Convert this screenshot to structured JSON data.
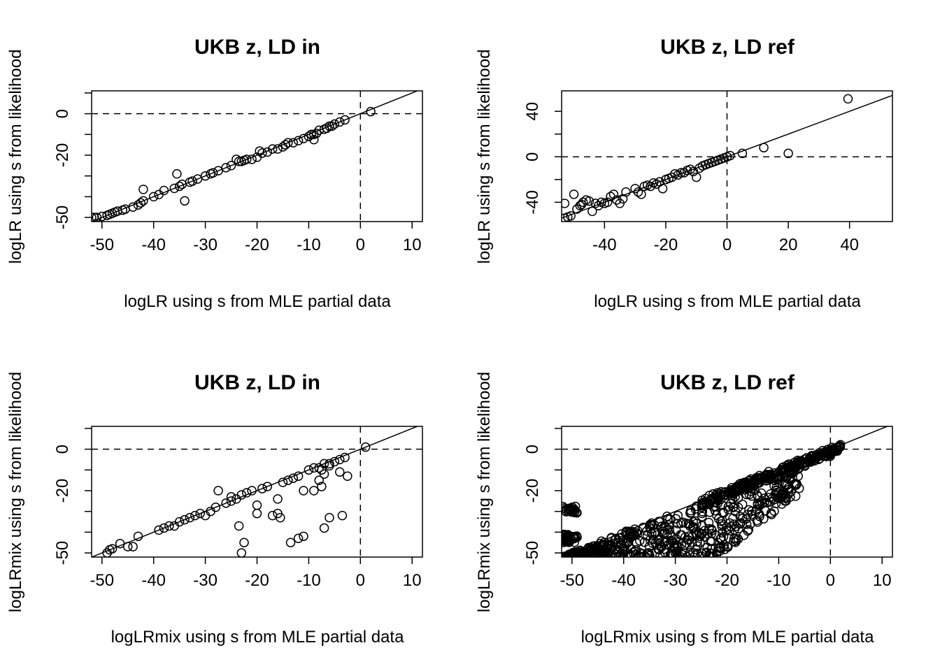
{
  "chart_data": [
    {
      "type": "scatter",
      "title": "UKB z, LD in",
      "xlabel": "logLR using s from MLE partial data",
      "ylabel": "logLR using s from likelihood",
      "xlim": [
        -52,
        12
      ],
      "ylim": [
        -52,
        11
      ],
      "xticks": [
        -50,
        -40,
        -30,
        -20,
        -10,
        0,
        10
      ],
      "yticks": [
        -50,
        -40,
        -30,
        -20,
        -10,
        0,
        10
      ],
      "ytick_labels": [
        "-50",
        "",
        "",
        "-20",
        "",
        "0",
        ""
      ],
      "reference_lines": {
        "diagonal": true,
        "h_dashed": 0,
        "v_dashed": 0
      },
      "points": [
        [
          -52,
          -50
        ],
        [
          -51.5,
          -50
        ],
        [
          -51,
          -50
        ],
        [
          -50,
          -49.5
        ],
        [
          -49,
          -49
        ],
        [
          -48.5,
          -48.5
        ],
        [
          -48,
          -48
        ],
        [
          -47.5,
          -47.5
        ],
        [
          -47,
          -47
        ],
        [
          -46,
          -46.5
        ],
        [
          -45.5,
          -46
        ],
        [
          -44,
          -45
        ],
        [
          -43,
          -44
        ],
        [
          -42.5,
          -43
        ],
        [
          -42,
          -42
        ],
        [
          -42,
          -36.5
        ],
        [
          -40,
          -40
        ],
        [
          -39,
          -39
        ],
        [
          -38,
          -37
        ],
        [
          -36,
          -36
        ],
        [
          -35,
          -35
        ],
        [
          -34.5,
          -34
        ],
        [
          -35.5,
          -29
        ],
        [
          -34,
          -42
        ],
        [
          -33,
          -33
        ],
        [
          -32.5,
          -32.5
        ],
        [
          -31.5,
          -31.5
        ],
        [
          -30,
          -30
        ],
        [
          -29,
          -29
        ],
        [
          -28.5,
          -28.5
        ],
        [
          -27.5,
          -27.5
        ],
        [
          -26,
          -26
        ],
        [
          -25,
          -25
        ],
        [
          -24,
          -22
        ],
        [
          -23.5,
          -23
        ],
        [
          -23,
          -23
        ],
        [
          -22.5,
          -22.5
        ],
        [
          -22,
          -22
        ],
        [
          -21,
          -22
        ],
        [
          -20,
          -21
        ],
        [
          -19.5,
          -18
        ],
        [
          -19,
          -19
        ],
        [
          -18,
          -18.5
        ],
        [
          -17,
          -17
        ],
        [
          -16,
          -17
        ],
        [
          -15,
          -16
        ],
        [
          -14.5,
          -15
        ],
        [
          -14,
          -14
        ],
        [
          -13,
          -14
        ],
        [
          -12,
          -13
        ],
        [
          -11,
          -12
        ],
        [
          -10,
          -11
        ],
        [
          -9.5,
          -10
        ],
        [
          -9,
          -10
        ],
        [
          -8.5,
          -9.5
        ],
        [
          -8,
          -8
        ],
        [
          -7,
          -7.5
        ],
        [
          -6.5,
          -7
        ],
        [
          -6,
          -6
        ],
        [
          -5.5,
          -6
        ],
        [
          -5,
          -5
        ],
        [
          -4,
          -4
        ],
        [
          -3,
          -3
        ],
        [
          2,
          1
        ],
        [
          -9,
          -12.5
        ]
      ]
    },
    {
      "type": "scatter",
      "title": "UKB z, LD ref",
      "xlabel": "logLR using s from MLE partial data",
      "ylabel": "logLR using s from likelihood",
      "xlim": [
        -54,
        54
      ],
      "ylim": [
        -57,
        58
      ],
      "xticks": [
        -40,
        -20,
        0,
        20,
        40
      ],
      "yticks": [
        -40,
        -20,
        0,
        20,
        40
      ],
      "ytick_labels": [
        "-40",
        "",
        "0",
        "",
        "40"
      ],
      "reference_lines": {
        "diagonal": true,
        "h_dashed": 0,
        "v_dashed": 0
      },
      "points": [
        [
          -53,
          -54
        ],
        [
          -52,
          -53
        ],
        [
          -51,
          -52
        ],
        [
          -53,
          -41
        ],
        [
          -50,
          -33
        ],
        [
          -49,
          -46
        ],
        [
          -48,
          -43
        ],
        [
          -47.5,
          -42
        ],
        [
          -47,
          -40
        ],
        [
          -46,
          -38
        ],
        [
          -45,
          -39
        ],
        [
          -44,
          -48
        ],
        [
          -43,
          -41
        ],
        [
          -42,
          -43
        ],
        [
          -41,
          -40
        ],
        [
          -40,
          -41
        ],
        [
          -39,
          -40
        ],
        [
          -38,
          -35
        ],
        [
          -37,
          -33
        ],
        [
          -36,
          -38
        ],
        [
          -35,
          -41
        ],
        [
          -34,
          -37
        ],
        [
          -33,
          -31
        ],
        [
          -30,
          -28
        ],
        [
          -29,
          -31
        ],
        [
          -28,
          -33
        ],
        [
          -27,
          -26
        ],
        [
          -26,
          -25
        ],
        [
          -25,
          -26
        ],
        [
          -24,
          -23
        ],
        [
          -23,
          -24
        ],
        [
          -22,
          -22
        ],
        [
          -21,
          -28
        ],
        [
          -20,
          -20
        ],
        [
          -19,
          -19
        ],
        [
          -18,
          -18
        ],
        [
          -17,
          -15
        ],
        [
          -16,
          -16
        ],
        [
          -15,
          -14
        ],
        [
          -14,
          -14
        ],
        [
          -13,
          -12
        ],
        [
          -12,
          -11
        ],
        [
          -11,
          -13
        ],
        [
          -10,
          -18
        ],
        [
          -9,
          -10
        ],
        [
          -8,
          -8
        ],
        [
          -7,
          -7
        ],
        [
          -6,
          -6
        ],
        [
          -5,
          -5
        ],
        [
          -4,
          -4
        ],
        [
          -3,
          -3
        ],
        [
          -2,
          -2
        ],
        [
          -1,
          -1
        ],
        [
          0,
          0
        ],
        [
          1,
          1
        ],
        [
          5,
          3
        ],
        [
          12,
          8
        ],
        [
          20,
          3
        ],
        [
          39.5,
          51
        ]
      ]
    },
    {
      "type": "scatter",
      "title": "UKB z, LD in",
      "xlabel": "logLRmix using s from MLE partial data",
      "ylabel": "logLRmix using s from likelihood",
      "xlim": [
        -52,
        12
      ],
      "ylim": [
        -52,
        11
      ],
      "xticks": [
        -50,
        -40,
        -30,
        -20,
        -10,
        0,
        10
      ],
      "yticks": [
        -50,
        -40,
        -30,
        -20,
        -10,
        0,
        10
      ],
      "ytick_labels": [
        "-50",
        "",
        "",
        "-20",
        "",
        "0",
        ""
      ],
      "reference_lines": {
        "diagonal": true,
        "h_dashed": 0,
        "v_dashed": 0
      },
      "points": [
        [
          -49,
          -50
        ],
        [
          -48.5,
          -48.5
        ],
        [
          -48,
          -48
        ],
        [
          -46.5,
          -45.5
        ],
        [
          -45,
          -47
        ],
        [
          -44,
          -47
        ],
        [
          -43,
          -42
        ],
        [
          -39,
          -39
        ],
        [
          -38,
          -38
        ],
        [
          -37,
          -37
        ],
        [
          -36,
          -37
        ],
        [
          -35,
          -35
        ],
        [
          -34,
          -34
        ],
        [
          -33,
          -33
        ],
        [
          -32,
          -32
        ],
        [
          -31,
          -31
        ],
        [
          -30,
          -32
        ],
        [
          -29,
          -30
        ],
        [
          -28,
          -28
        ],
        [
          -27.5,
          -20
        ],
        [
          -26,
          -26
        ],
        [
          -25,
          -23
        ],
        [
          -25,
          -25
        ],
        [
          -24,
          -24
        ],
        [
          -23.5,
          -37
        ],
        [
          -23,
          -22
        ],
        [
          -23,
          -50
        ],
        [
          -22.5,
          -45
        ],
        [
          -22,
          -21
        ],
        [
          -21,
          -20
        ],
        [
          -20,
          -31
        ],
        [
          -20,
          -27
        ],
        [
          -19,
          -19
        ],
        [
          -18,
          -18
        ],
        [
          -17,
          -32
        ],
        [
          -16,
          -24
        ],
        [
          -16,
          -31
        ],
        [
          -15.5,
          -33
        ],
        [
          -15,
          -16
        ],
        [
          -14,
          -15
        ],
        [
          -13.5,
          -45
        ],
        [
          -13,
          -14
        ],
        [
          -12,
          -13
        ],
        [
          -12,
          -43
        ],
        [
          -11,
          -20
        ],
        [
          -11,
          -42
        ],
        [
          -10,
          -10
        ],
        [
          -9,
          -20
        ],
        [
          -9,
          -9
        ],
        [
          -8,
          -9
        ],
        [
          -7.5,
          -10
        ],
        [
          -7,
          -12
        ],
        [
          -7,
          -38
        ],
        [
          -7.5,
          -18
        ],
        [
          -6,
          -8
        ],
        [
          -6,
          -33
        ],
        [
          -5,
          -6
        ],
        [
          -4,
          -11
        ],
        [
          -4,
          -5
        ],
        [
          -3.5,
          -32
        ],
        [
          -3,
          -4
        ],
        [
          -2.5,
          -13
        ],
        [
          1,
          1
        ],
        [
          -8,
          -15
        ],
        [
          -7,
          -7
        ],
        [
          -6,
          -7
        ]
      ]
    },
    {
      "type": "scatter",
      "title": "UKB z, LD ref",
      "xlabel": "logLRmix using s from MLE partial data",
      "ylabel": "logLRmix using s from likelihood",
      "xlim": [
        -52,
        12
      ],
      "ylim": [
        -52,
        11
      ],
      "xticks": [
        -50,
        -40,
        -30,
        -20,
        -10,
        0,
        10
      ],
      "yticks": [
        -50,
        -40,
        -30,
        -20,
        -10,
        0,
        10
      ],
      "ytick_labels": [
        "-50",
        "",
        "",
        "-20",
        "",
        "0",
        ""
      ],
      "reference_lines": {
        "diagonal": true,
        "h_dashed": 0,
        "v_dashed": 0
      },
      "generated_cloud": true
    }
  ]
}
